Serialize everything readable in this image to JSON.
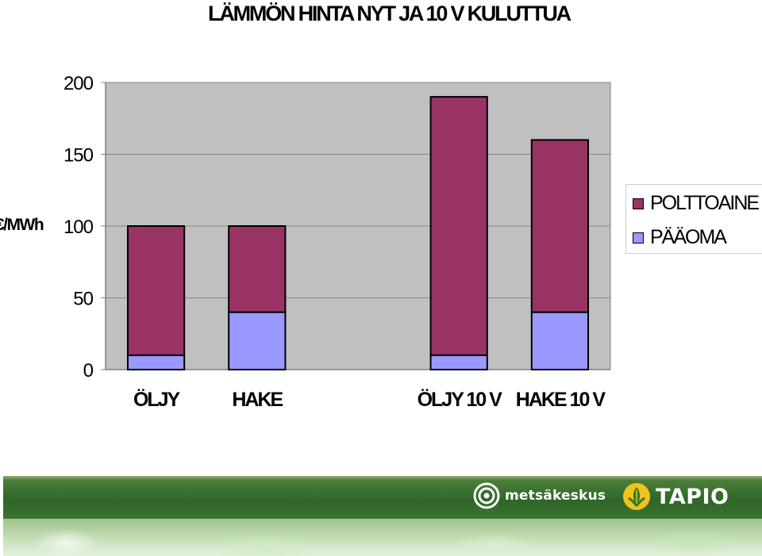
{
  "title": "LÄMMÖN HINTA NYT JA 10 V KULUTTUA",
  "chart_data": {
    "type": "bar",
    "stacked": true,
    "title": "LÄMMÖN HINTA NYT JA 10 V KULUTTUA",
    "ylabel": "€/MWh",
    "xlabel": "",
    "ylim": [
      0,
      200
    ],
    "yticks": [
      0,
      50,
      100,
      150,
      200
    ],
    "categories": [
      "ÖLJY",
      "HAKE",
      "",
      "ÖLJY 10 V",
      "HAKE 10 V"
    ],
    "series": [
      {
        "name": "PÄÄOMA",
        "color": "#9999ff",
        "values": [
          10,
          40,
          null,
          10,
          40
        ]
      },
      {
        "name": "POLTTOAINE",
        "color": "#993366",
        "values": [
          90,
          60,
          null,
          180,
          120
        ]
      }
    ],
    "legend": "right",
    "grid": true,
    "plot_background": "#c0c0c0"
  },
  "legend": [
    {
      "label": "POLTTOAINE",
      "color": "#993366"
    },
    {
      "label": "PÄÄOMA",
      "color": "#9999ff"
    }
  ],
  "footer": {
    "logo_left_text": "metsäkeskus",
    "logo_right_text": "TAPIO"
  }
}
